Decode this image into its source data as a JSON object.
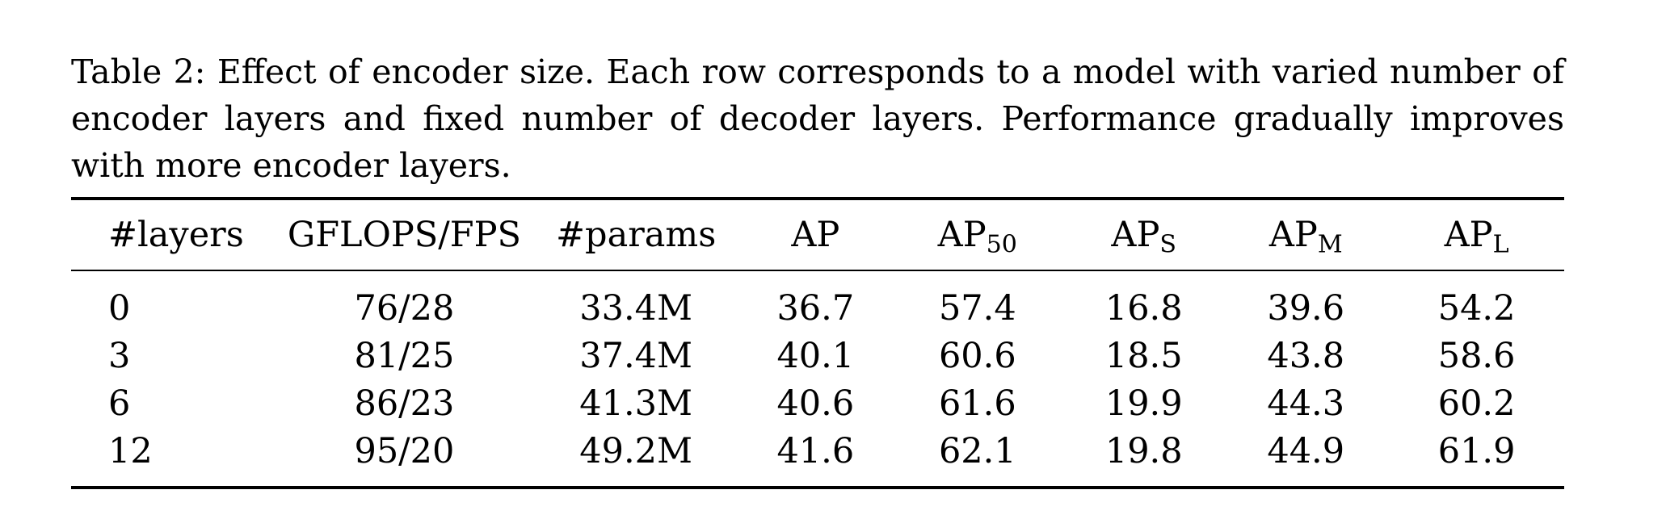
{
  "caption": "Table 2: Effect of encoder size. Each row corresponds to a model with varied number of encoder layers and fixed number of decoder layers. Performance gradually improves with more encoder layers.",
  "table": {
    "headers": [
      {
        "main": "#layers",
        "sub": ""
      },
      {
        "main": "GFLOPS/FPS",
        "sub": ""
      },
      {
        "main": "#params",
        "sub": ""
      },
      {
        "main": "AP",
        "sub": ""
      },
      {
        "main": "AP",
        "sub": "50"
      },
      {
        "main": "AP",
        "sub": "S"
      },
      {
        "main": "AP",
        "sub": "M"
      },
      {
        "main": "AP",
        "sub": "L"
      }
    ],
    "rows": [
      [
        "0",
        "76/28",
        "33.4M",
        "36.7",
        "57.4",
        "16.8",
        "39.6",
        "54.2"
      ],
      [
        "3",
        "81/25",
        "37.4M",
        "40.1",
        "60.6",
        "18.5",
        "43.8",
        "58.6"
      ],
      [
        "6",
        "86/23",
        "41.3M",
        "40.6",
        "61.6",
        "19.9",
        "44.3",
        "60.2"
      ],
      [
        "12",
        "95/20",
        "49.2M",
        "41.6",
        "62.1",
        "19.8",
        "44.9",
        "61.9"
      ]
    ]
  }
}
